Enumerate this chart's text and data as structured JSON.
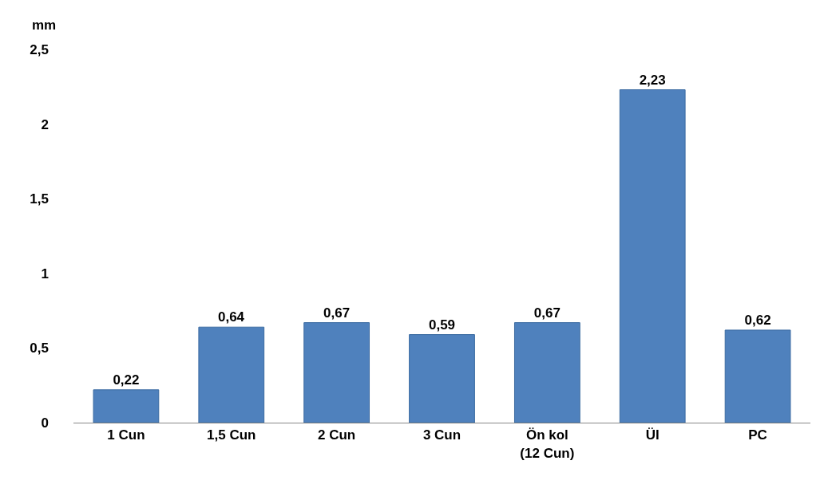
{
  "chart_data": {
    "type": "bar",
    "ylabel": "mm",
    "categories": [
      "1 Cun",
      "1,5 Cun",
      "2 Cun",
      "3 Cun",
      "Ön kol\n(12 Cun)",
      "ÜI",
      "PC"
    ],
    "values": [
      0.22,
      0.64,
      0.67,
      0.59,
      0.67,
      2.23,
      0.62
    ],
    "value_labels": [
      "0,22",
      "0,64",
      "0,67",
      "0,59",
      "0,67",
      "2,23",
      "0,62"
    ],
    "color": "#4f81bd",
    "ylim": [
      0,
      2.5
    ],
    "yticks": [
      0,
      {
        "value": 0.5,
        "label": "0,5"
      },
      1,
      {
        "value": 1.5,
        "label": "1,5"
      },
      2,
      {
        "value": 2.5,
        "label": "2,5"
      }
    ],
    "legend": false
  }
}
